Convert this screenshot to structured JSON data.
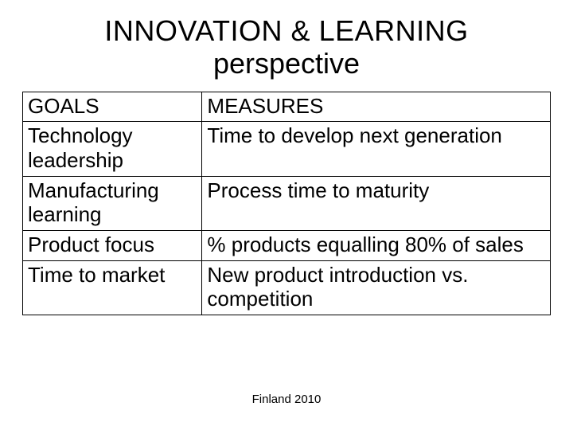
{
  "title": {
    "line1": "INNOVATION & LEARNING",
    "line2": "perspective",
    "fontsize": 36,
    "color": "#000000"
  },
  "table": {
    "type": "table",
    "border_color": "#000000",
    "border_width": 1,
    "background_color": "#ffffff",
    "text_color": "#000000",
    "cell_fontsize": 26,
    "columns": [
      {
        "key": "goals",
        "width_pct": 34,
        "align": "left"
      },
      {
        "key": "measures",
        "width_pct": 66,
        "align": "left"
      }
    ],
    "rows": [
      {
        "goals": "GOALS",
        "measures": "MEASURES"
      },
      {
        "goals": "Technology leadership",
        "measures": "Time to develop next generation"
      },
      {
        "goals": "Manufacturing learning",
        "measures": "Process time to maturity"
      },
      {
        "goals": "Product focus",
        "measures": "% products equalling 80% of sales"
      },
      {
        "goals": "Time to market",
        "measures": "New product introduction vs. competition"
      }
    ]
  },
  "footer": {
    "text": "Finland 2010",
    "fontsize": 15,
    "color": "#000000"
  }
}
